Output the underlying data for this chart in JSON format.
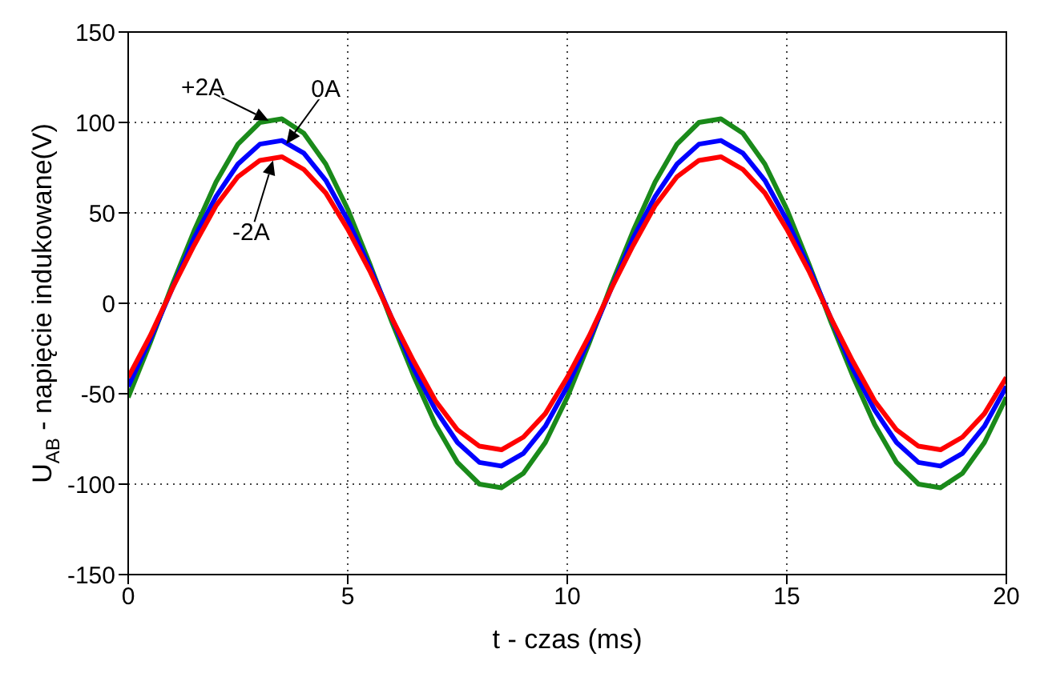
{
  "chart_data": {
    "type": "line",
    "xlabel": "t - czas (ms)",
    "ylabel": "U$_{AB}$ - napięcie indukowane(V)",
    "x": [
      0,
      0.5,
      1,
      1.5,
      2,
      2.5,
      3,
      3.5,
      4,
      4.5,
      5,
      5.5,
      6,
      6.5,
      7,
      7.5,
      8,
      8.5,
      9,
      9.5,
      10,
      10.5,
      11,
      11.5,
      12,
      12.5,
      13,
      13.5,
      14,
      14.5,
      15,
      15.5,
      16,
      16.5,
      17,
      17.5,
      18,
      18.5,
      19,
      19.5,
      20
    ],
    "series": [
      {
        "color": "#1a8a1a",
        "values": [
          -52,
          -22,
          10,
          40,
          67,
          88,
          100,
          102,
          94,
          77,
          52,
          22,
          -10,
          -40,
          -67,
          -88,
          -100,
          -102,
          -94,
          -77,
          -52,
          -22,
          10,
          40,
          67,
          88,
          100,
          102,
          94,
          77,
          52,
          22,
          -10,
          -40,
          -67,
          -88,
          -100,
          -102,
          -94,
          -77,
          -52
        ]
      },
      {
        "color": "#0000ff",
        "values": [
          -46,
          -20,
          8,
          36,
          59,
          77,
          88,
          90,
          83,
          68,
          46,
          20,
          -8,
          -36,
          -59,
          -77,
          -88,
          -90,
          -83,
          -68,
          -46,
          -20,
          8,
          36,
          59,
          77,
          88,
          90,
          83,
          68,
          46,
          20,
          -8,
          -36,
          -59,
          -77,
          -88,
          -90,
          -83,
          -68,
          -46
        ]
      },
      {
        "color": "#ff0000",
        "values": [
          -41,
          -18,
          8,
          32,
          54,
          70,
          79,
          81,
          74,
          61,
          41,
          18,
          -8,
          -32,
          -54,
          -70,
          -79,
          -81,
          -74,
          -61,
          -41,
          -18,
          8,
          32,
          54,
          70,
          79,
          81,
          74,
          61,
          41,
          18,
          -8,
          -32,
          -54,
          -70,
          -79,
          -81,
          -74,
          -61,
          -41
        ]
      }
    ],
    "annotations": [
      {
        "text": "+2A",
        "x": 3.2,
        "y": 101
      },
      {
        "text": "0A",
        "x": 3.6,
        "y": 88
      },
      {
        "text": "-2A",
        "x": 3.3,
        "y": 79
      }
    ],
    "xlim": [
      0,
      20
    ],
    "xticks": [
      0,
      5,
      10,
      15,
      20
    ],
    "ylim": [
      -150,
      150
    ],
    "yticks": [
      -150,
      -100,
      -50,
      0,
      50,
      100,
      150
    ],
    "grid": true,
    "marker": "none",
    "line_style": "solid",
    "legend": false
  }
}
